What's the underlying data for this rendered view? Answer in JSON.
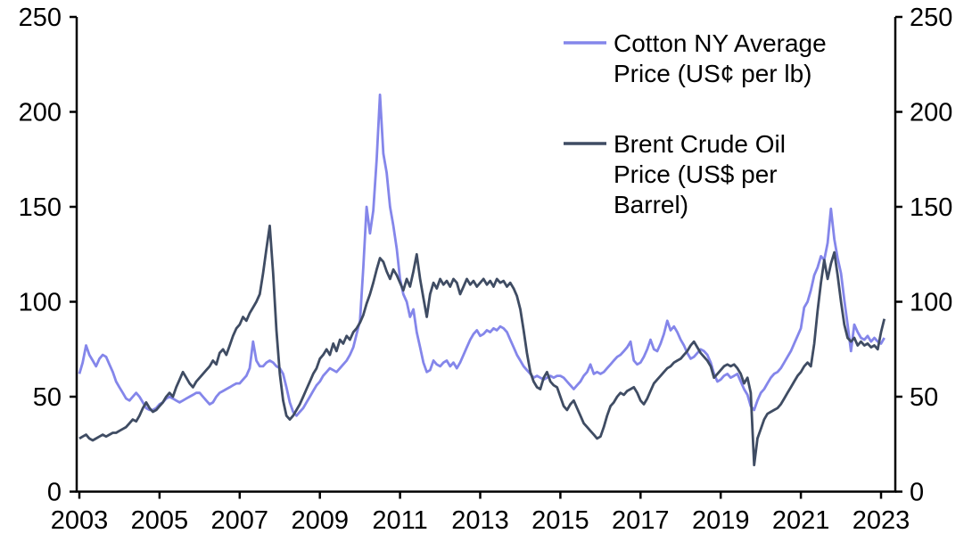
{
  "chart_data": {
    "type": "line",
    "title": "",
    "grid": false,
    "legend_position": "top-right",
    "background": "#ffffff",
    "axis_color": "#000000",
    "x_start_year": 2003,
    "x_step_months": 1,
    "x_ticks": [
      2003,
      2005,
      2007,
      2009,
      2011,
      2013,
      2015,
      2017,
      2019,
      2021,
      2023
    ],
    "y_ticks": [
      0,
      50,
      100,
      150,
      200,
      250
    ],
    "ylim": [
      0,
      250
    ],
    "xlim_years": [
      2003,
      2023.35
    ],
    "series": [
      {
        "name": "Cotton NY Average Price (US¢ per lb)",
        "legend_lines": [
          "Cotton NY Average",
          "Price (US¢ per lb)"
        ],
        "color": "#8486ea",
        "values": [
          62,
          68,
          77,
          72,
          69,
          66,
          70,
          72,
          71,
          67,
          63,
          58,
          55,
          52,
          49,
          48,
          50,
          52,
          50,
          47,
          44,
          43,
          43,
          44,
          46,
          47,
          49,
          50,
          49,
          48,
          47,
          48,
          49,
          50,
          51,
          52,
          52,
          50,
          48,
          46,
          47,
          50,
          52,
          53,
          54,
          55,
          56,
          57,
          57,
          59,
          61,
          65,
          79,
          69,
          66,
          66,
          68,
          69,
          68,
          66,
          65,
          62,
          55,
          47,
          42,
          40,
          42,
          44,
          47,
          50,
          53,
          56,
          58,
          61,
          63,
          65,
          64,
          63,
          65,
          67,
          69,
          72,
          76,
          83,
          90,
          118,
          150,
          136,
          148,
          175,
          209,
          178,
          168,
          150,
          140,
          128,
          112,
          104,
          100,
          92,
          96,
          84,
          76,
          68,
          63,
          64,
          69,
          67,
          66,
          68,
          69,
          66,
          68,
          65,
          68,
          72,
          76,
          80,
          83,
          85,
          82,
          83,
          85,
          84,
          86,
          85,
          87,
          86,
          84,
          80,
          76,
          72,
          69,
          66,
          64,
          62,
          60,
          61,
          60,
          59,
          60,
          61,
          60,
          61,
          61,
          60,
          58,
          56,
          54,
          56,
          58,
          61,
          63,
          67,
          62,
          63,
          62,
          63,
          65,
          67,
          69,
          71,
          72,
          74,
          76,
          79,
          69,
          67,
          68,
          71,
          75,
          80,
          75,
          74,
          78,
          83,
          90,
          85,
          87,
          84,
          80,
          77,
          73,
          70,
          71,
          73,
          75,
          74,
          72,
          68,
          62,
          58,
          59,
          61,
          62,
          60,
          61,
          62,
          58,
          54,
          51,
          45,
          43,
          48,
          52,
          54,
          57,
          60,
          62,
          63,
          65,
          68,
          71,
          74,
          78,
          82,
          86,
          97,
          100,
          106,
          114,
          118,
          124,
          122,
          131,
          149,
          133,
          123,
          115,
          101,
          88,
          74,
          88,
          84,
          81,
          80,
          82,
          79,
          81,
          79,
          78,
          81
        ]
      },
      {
        "name": "Brent Crude Oil Price (US$ per Barrel)",
        "legend_lines": [
          "Brent Crude Oil",
          "Price (US$ per",
          "Barrel)"
        ],
        "color": "#3f4c63",
        "values": [
          28,
          29,
          30,
          28,
          27,
          28,
          29,
          30,
          29,
          30,
          31,
          31,
          32,
          33,
          34,
          36,
          38,
          37,
          40,
          44,
          47,
          44,
          42,
          43,
          45,
          47,
          50,
          52,
          50,
          55,
          59,
          63,
          60,
          57,
          55,
          58,
          60,
          62,
          64,
          66,
          69,
          67,
          73,
          75,
          72,
          77,
          82,
          86,
          88,
          92,
          90,
          94,
          97,
          100,
          104,
          115,
          128,
          140,
          115,
          85,
          62,
          48,
          40,
          38,
          40,
          43,
          46,
          50,
          54,
          58,
          62,
          65,
          70,
          72,
          75,
          72,
          78,
          74,
          80,
          78,
          82,
          80,
          84,
          86,
          89,
          93,
          99,
          104,
          110,
          117,
          123,
          121,
          116,
          112,
          117,
          114,
          110,
          106,
          112,
          108,
          116,
          125,
          112,
          102,
          92,
          104,
          110,
          107,
          112,
          109,
          111,
          108,
          112,
          110,
          104,
          108,
          112,
          109,
          111,
          108,
          110,
          112,
          109,
          111,
          108,
          112,
          110,
          111,
          108,
          110,
          107,
          103,
          96,
          85,
          73,
          63,
          58,
          55,
          54,
          60,
          63,
          58,
          56,
          55,
          50,
          45,
          43,
          46,
          48,
          44,
          40,
          36,
          34,
          32,
          30,
          28,
          29,
          34,
          40,
          45,
          47,
          50,
          52,
          51,
          53,
          54,
          55,
          52,
          48,
          46,
          49,
          53,
          57,
          59,
          61,
          63,
          65,
          66,
          68,
          69,
          70,
          72,
          74,
          77,
          79,
          76,
          73,
          71,
          69,
          66,
          60,
          62,
          64,
          66,
          67,
          66,
          67,
          65,
          62,
          57,
          60,
          52,
          14,
          28,
          33,
          38,
          41,
          42,
          43,
          44,
          46,
          49,
          52,
          55,
          58,
          61,
          63,
          66,
          68,
          66,
          78,
          95,
          110,
          122,
          112,
          120,
          126,
          114,
          100,
          88,
          81,
          79,
          81,
          77,
          79,
          77,
          78,
          76,
          77,
          75,
          84,
          91
        ]
      }
    ]
  }
}
